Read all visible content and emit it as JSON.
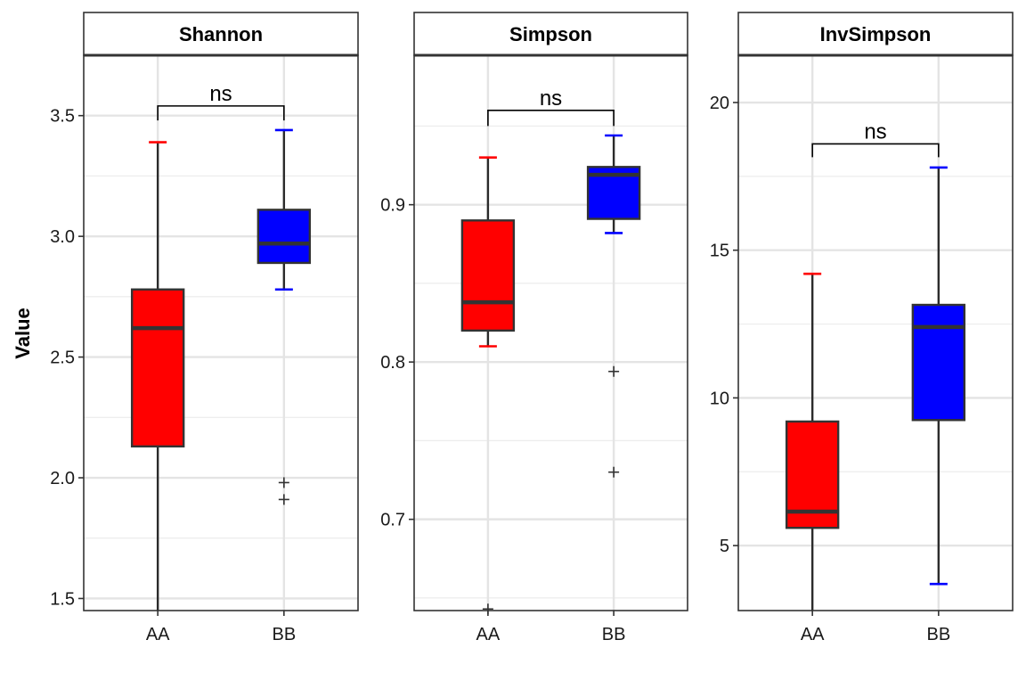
{
  "chart_data": {
    "type": "box",
    "ylabel": "Value",
    "categories": [
      "AA",
      "BB"
    ],
    "group_colors": {
      "AA": "#ff0000",
      "BB": "#0000ff"
    },
    "panels": [
      {
        "title": "Shannon",
        "ylim": [
          1.45,
          3.75
        ],
        "yticks": [
          1.5,
          2.0,
          2.5,
          3.0,
          3.5
        ],
        "ytick_labels": [
          "1.5",
          "2.0",
          "2.5",
          "3.0",
          "3.5"
        ],
        "significance": {
          "label": "ns",
          "y": 3.54,
          "drop": 0.06
        },
        "boxes": [
          {
            "group": "AA",
            "whisker_low": 1.45,
            "q1": 2.13,
            "median": 2.62,
            "q3": 2.78,
            "whisker_high": 3.39,
            "outliers": []
          },
          {
            "group": "BB",
            "whisker_low": 2.78,
            "q1": 2.89,
            "median": 2.97,
            "q3": 3.11,
            "whisker_high": 3.44,
            "outliers": [
              1.98,
              1.91
            ]
          }
        ]
      },
      {
        "title": "Simpson",
        "ylim": [
          0.642,
          0.995
        ],
        "yticks": [
          0.7,
          0.8,
          0.9
        ],
        "ytick_labels": [
          "0.7",
          "0.8",
          "0.9"
        ],
        "significance": {
          "label": "ns",
          "y": 0.96,
          "drop": 0.01
        },
        "boxes": [
          {
            "group": "AA",
            "whisker_low": 0.81,
            "q1": 0.82,
            "median": 0.838,
            "q3": 0.89,
            "whisker_high": 0.93,
            "outliers": [
              0.643
            ]
          },
          {
            "group": "BB",
            "whisker_low": 0.882,
            "q1": 0.891,
            "median": 0.919,
            "q3": 0.924,
            "whisker_high": 0.944,
            "outliers": [
              0.794,
              0.73
            ]
          }
        ]
      },
      {
        "title": "InvSimpson",
        "ylim": [
          2.8,
          21.6
        ],
        "yticks": [
          5,
          10,
          15,
          20
        ],
        "ytick_labels": [
          "5",
          "10",
          "15",
          "20"
        ],
        "significance": {
          "label": "ns",
          "y": 18.6,
          "drop": 0.45
        },
        "boxes": [
          {
            "group": "AA",
            "whisker_low": 2.8,
            "q1": 5.6,
            "median": 6.15,
            "q3": 9.2,
            "whisker_high": 14.2,
            "outliers": []
          },
          {
            "group": "BB",
            "whisker_low": 3.7,
            "q1": 9.25,
            "median": 12.4,
            "q3": 13.15,
            "whisker_high": 17.8,
            "outliers": []
          }
        ]
      }
    ]
  }
}
